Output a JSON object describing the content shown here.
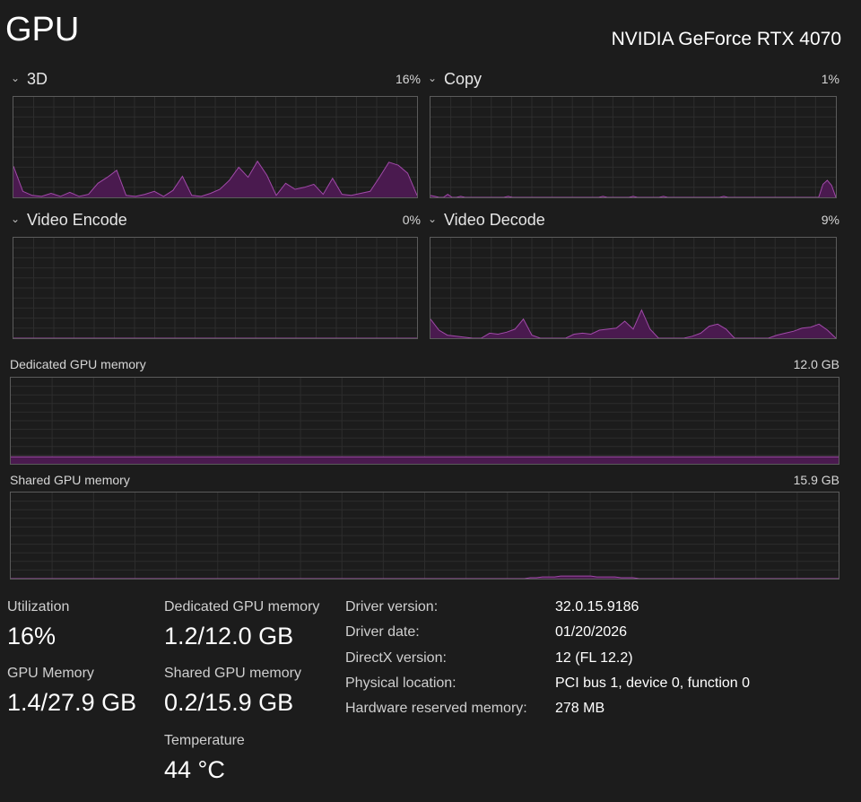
{
  "header": {
    "title": "GPU",
    "device_name": "NVIDIA GeForce RTX 4070"
  },
  "engines": [
    {
      "label": "3D",
      "percent": "16%"
    },
    {
      "label": "Copy",
      "percent": "1%"
    },
    {
      "label": "Video Encode",
      "percent": "0%"
    },
    {
      "label": "Video Decode",
      "percent": "9%"
    }
  ],
  "memory_graphs": {
    "dedicated": {
      "label": "Dedicated GPU memory",
      "max": "12.0 GB"
    },
    "shared": {
      "label": "Shared GPU memory",
      "max": "15.9 GB"
    }
  },
  "stats": {
    "utilization": {
      "label": "Utilization",
      "value": "16%"
    },
    "gpu_memory": {
      "label": "GPU Memory",
      "value": "1.4/27.9 GB"
    },
    "dedicated_memory": {
      "label": "Dedicated GPU memory",
      "value": "1.2/12.0 GB"
    },
    "shared_memory": {
      "label": "Shared GPU memory",
      "value": "0.2/15.9 GB"
    },
    "temperature": {
      "label": "Temperature",
      "value": "44 °C"
    }
  },
  "info": [
    {
      "key": "Driver version:",
      "value": "32.0.15.9186"
    },
    {
      "key": "Driver date:",
      "value": "01/20/2026"
    },
    {
      "key": "DirectX version:",
      "value": "12 (FL 12.2)"
    },
    {
      "key": "Physical location:",
      "value": "PCI bus 1, device 0, function 0"
    },
    {
      "key": "Hardware reserved memory:",
      "value": "278 MB"
    }
  ],
  "chart_data": {
    "type": "area",
    "fill_color": "#4a1a4f",
    "line_color": "#a04aa8",
    "ylim": [
      0,
      100
    ],
    "series": [
      {
        "values": [
          31,
          6,
          2,
          1,
          4,
          1,
          5,
          1,
          3,
          14,
          20,
          27,
          2,
          1,
          3,
          6,
          1,
          7,
          21,
          2,
          1,
          4,
          8,
          17,
          30,
          20,
          36,
          22,
          2,
          14,
          8,
          10,
          13,
          3,
          19,
          3,
          2,
          4,
          6,
          20,
          35,
          32,
          24,
          2
        ]
      },
      {
        "values": [
          2,
          1,
          0,
          0,
          3,
          0,
          0,
          1,
          0,
          0,
          0,
          0,
          0,
          0,
          0,
          0,
          0,
          0,
          1,
          0,
          0,
          0,
          0,
          0,
          0,
          0,
          0,
          0,
          0,
          0,
          0,
          0,
          0,
          0,
          0,
          0,
          0,
          0,
          0,
          0,
          1,
          0,
          0,
          0,
          0,
          0,
          0,
          1,
          0,
          0,
          0,
          0,
          0,
          0,
          1,
          0,
          0,
          0,
          0,
          0,
          0,
          0,
          0,
          0,
          0,
          0,
          0,
          0,
          1,
          0,
          0,
          0,
          0,
          0,
          0,
          0,
          0,
          0,
          0,
          0,
          0,
          0,
          0,
          0,
          0,
          0,
          0,
          0,
          0,
          0,
          0,
          13,
          17,
          12,
          0
        ]
      },
      {
        "values": [
          0,
          0,
          0,
          0,
          0,
          0,
          0,
          0,
          0,
          0,
          0,
          0,
          0,
          0,
          0,
          0,
          0,
          0,
          0,
          0,
          0,
          0,
          0,
          0,
          0,
          0,
          0,
          0,
          0,
          0,
          0,
          0,
          0,
          0,
          0,
          0,
          0,
          0,
          0,
          0,
          0,
          0,
          0,
          0,
          0
        ]
      },
      {
        "values": [
          19,
          8,
          3,
          2,
          1,
          0,
          0,
          5,
          4,
          6,
          9,
          19,
          3,
          0,
          0,
          0,
          0,
          4,
          5,
          4,
          8,
          9,
          10,
          17,
          9,
          28,
          9,
          0,
          0,
          0,
          0,
          2,
          5,
          12,
          14,
          9,
          0,
          0,
          0,
          0,
          0,
          3,
          5,
          7,
          10,
          11,
          14,
          8,
          0
        ]
      },
      {
        "values": [
          8,
          8,
          8,
          8,
          8,
          8,
          8,
          8,
          8,
          8,
          8,
          8,
          8,
          8,
          8,
          8,
          8,
          8,
          8,
          8,
          8,
          8,
          8,
          8,
          8,
          8,
          8,
          8,
          8,
          8,
          8,
          8,
          8,
          8,
          8,
          8,
          8,
          8,
          8,
          8,
          8,
          8,
          8,
          8,
          8,
          8,
          8,
          8,
          8,
          8
        ]
      },
      {
        "values": [
          0,
          0,
          0,
          0,
          0,
          0,
          0,
          0,
          0,
          0,
          0,
          0,
          0,
          0,
          0,
          0,
          0,
          0,
          0,
          0,
          0,
          0,
          0,
          0,
          0,
          0,
          0,
          0,
          0,
          0,
          0,
          0,
          0,
          0,
          0,
          0,
          0,
          0,
          0,
          0,
          0,
          0,
          0,
          0,
          0,
          0,
          0,
          0,
          0,
          0,
          0,
          0,
          0,
          0,
          0,
          0,
          0,
          0,
          0,
          0,
          0,
          0,
          0,
          0,
          0,
          0,
          0,
          0,
          0,
          0,
          0,
          0,
          0,
          0,
          0,
          0,
          0,
          0,
          0,
          0,
          0,
          0,
          0,
          0,
          0,
          0,
          1,
          1,
          2,
          2,
          2,
          3,
          3,
          3,
          3,
          3,
          3,
          2,
          2,
          2,
          2,
          1,
          1,
          1,
          0,
          0,
          0,
          0,
          0,
          0,
          0,
          0,
          0,
          0,
          0,
          0,
          0,
          0,
          0,
          0,
          0,
          0,
          0,
          0,
          0,
          0,
          0,
          0,
          0,
          0,
          0,
          0,
          0,
          0,
          0,
          0,
          0,
          0
        ]
      }
    ]
  }
}
